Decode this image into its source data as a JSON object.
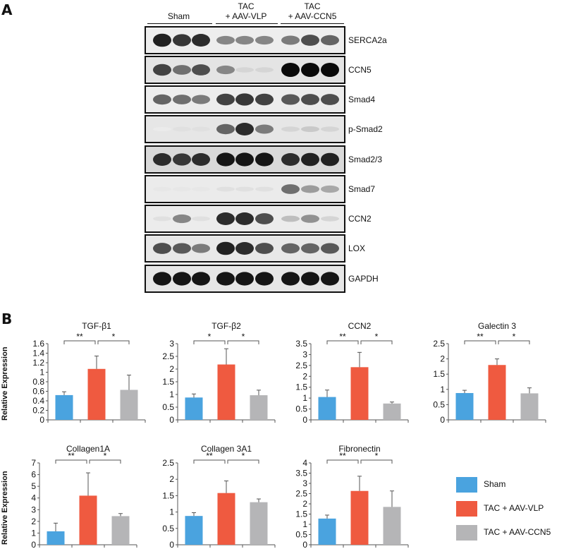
{
  "panel_a_label": "A",
  "panel_b_label": "B",
  "blot_groups": [
    {
      "label_line1": "",
      "label_line2": "Sham"
    },
    {
      "label_line1": "TAC",
      "label_line2": "+ AAV-VLP"
    },
    {
      "label_line1": "TAC",
      "label_line2": "+ AAV-CCN5"
    }
  ],
  "blots": [
    {
      "label": "SERCA2a",
      "intensities": [
        0.9,
        0.8,
        0.85,
        0.45,
        0.45,
        0.45,
        0.5,
        0.7,
        0.6
      ],
      "background": "#eeeeee"
    },
    {
      "label": "CCN5",
      "intensities": [
        0.75,
        0.55,
        0.7,
        0.45,
        0.1,
        0.1,
        1.0,
        1.0,
        1.0
      ],
      "background": "#e4e4e4"
    },
    {
      "label": "Smad4",
      "intensities": [
        0.6,
        0.55,
        0.5,
        0.75,
        0.8,
        0.75,
        0.65,
        0.7,
        0.7
      ],
      "background": "#ededed"
    },
    {
      "label": "p-Smad2",
      "intensities": [
        0.0,
        0.05,
        0.05,
        0.6,
        0.85,
        0.5,
        0.1,
        0.15,
        0.1
      ],
      "background": "#e6e6e6"
    },
    {
      "label": "Smad2/3",
      "intensities": [
        0.85,
        0.8,
        0.85,
        0.95,
        0.95,
        0.95,
        0.85,
        0.9,
        0.9
      ],
      "background": "#d9d9d9"
    },
    {
      "label": "Smad7",
      "intensities": [
        0.02,
        0.02,
        0.02,
        0.05,
        0.05,
        0.05,
        0.55,
        0.35,
        0.3
      ],
      "background": "#ebebeb"
    },
    {
      "label": "CCN2",
      "intensities": [
        0.05,
        0.45,
        0.05,
        0.85,
        0.85,
        0.7,
        0.2,
        0.4,
        0.1
      ],
      "background": "#ececec"
    },
    {
      "label": "LOX",
      "intensities": [
        0.7,
        0.65,
        0.5,
        0.9,
        0.85,
        0.7,
        0.6,
        0.6,
        0.65
      ],
      "background": "#e8e8e8"
    },
    {
      "label": "GAPDH",
      "intensities": [
        0.95,
        0.95,
        0.95,
        0.95,
        0.95,
        0.95,
        0.95,
        0.95,
        0.95
      ],
      "background": "#e6e6e6"
    }
  ],
  "y_axis_label": "Relative Expression",
  "colors": {
    "sham": "#4aa3df",
    "vlp": "#ef5a40",
    "ccn5": "#b5b5b7"
  },
  "chart_data": [
    {
      "type": "bar",
      "title": "TGF-β1",
      "categories": [
        "Sham",
        "TAC + AAV-VLP",
        "TAC + AAV-CCN5"
      ],
      "values": [
        0.52,
        1.07,
        0.63
      ],
      "errors": [
        0.07,
        0.27,
        0.31
      ],
      "ylim": [
        0,
        1.6
      ],
      "yticks": [
        "0",
        "0.2",
        "0.4",
        "0.6",
        "0.8",
        "1",
        "1.2",
        "1.4",
        "1.6"
      ],
      "significance": [
        {
          "from": 0,
          "to": 1,
          "label": "**"
        },
        {
          "from": 1,
          "to": 2,
          "label": "*"
        }
      ]
    },
    {
      "type": "bar",
      "title": "TGF-β2",
      "categories": [
        "Sham",
        "TAC + AAV-VLP",
        "TAC + AAV-CCN5"
      ],
      "values": [
        0.88,
        2.18,
        0.97
      ],
      "errors": [
        0.14,
        0.62,
        0.2
      ],
      "ylim": [
        0,
        3
      ],
      "yticks": [
        "0",
        "0.5",
        "1",
        "1.5",
        "2",
        "2.5",
        "3"
      ],
      "significance": [
        {
          "from": 0,
          "to": 1,
          "label": "*"
        },
        {
          "from": 1,
          "to": 2,
          "label": "*"
        }
      ]
    },
    {
      "type": "bar",
      "title": "CCN2",
      "categories": [
        "Sham",
        "TAC + AAV-VLP",
        "TAC + AAV-CCN5"
      ],
      "values": [
        1.05,
        2.42,
        0.75
      ],
      "errors": [
        0.32,
        0.68,
        0.07
      ],
      "ylim": [
        0,
        3.5
      ],
      "yticks": [
        "0",
        "0.5",
        "1",
        "1.5",
        "2",
        "2.5",
        "3",
        "3.5"
      ],
      "significance": [
        {
          "from": 0,
          "to": 1,
          "label": "**"
        },
        {
          "from": 1,
          "to": 2,
          "label": "*"
        }
      ]
    },
    {
      "type": "bar",
      "title": "Galectin 3",
      "categories": [
        "Sham",
        "TAC + AAV-VLP",
        "TAC + AAV-CCN5"
      ],
      "values": [
        0.88,
        1.8,
        0.87
      ],
      "errors": [
        0.09,
        0.2,
        0.18
      ],
      "ylim": [
        0,
        2.5
      ],
      "yticks": [
        "0",
        "0.5",
        "1",
        "1.5",
        "2",
        "2.5"
      ],
      "significance": [
        {
          "from": 0,
          "to": 1,
          "label": "**"
        },
        {
          "from": 1,
          "to": 2,
          "label": "*"
        }
      ]
    },
    {
      "type": "bar",
      "title": "Collagen1A",
      "categories": [
        "Sham",
        "TAC + AAV-VLP",
        "TAC + AAV-CCN5"
      ],
      "values": [
        1.15,
        4.2,
        2.45
      ],
      "errors": [
        0.7,
        1.95,
        0.22
      ],
      "ylim": [
        0,
        7
      ],
      "yticks": [
        "0",
        "1",
        "2",
        "3",
        "4",
        "5",
        "6",
        "7"
      ],
      "significance": [
        {
          "from": 0,
          "to": 1,
          "label": "**"
        },
        {
          "from": 1,
          "to": 2,
          "label": "*"
        }
      ]
    },
    {
      "type": "bar",
      "title": "Collagen 3A1",
      "categories": [
        "Sham",
        "TAC + AAV-VLP",
        "TAC + AAV-CCN5"
      ],
      "values": [
        0.88,
        1.58,
        1.3
      ],
      "errors": [
        0.1,
        0.37,
        0.1
      ],
      "ylim": [
        0,
        2.5
      ],
      "yticks": [
        "0",
        "0.5",
        "1",
        "1.5",
        "2",
        "2.5"
      ],
      "significance": [
        {
          "from": 0,
          "to": 1,
          "label": "**"
        },
        {
          "from": 1,
          "to": 2,
          "label": "*"
        }
      ]
    },
    {
      "type": "bar",
      "title": "Fibronectin",
      "categories": [
        "Sham",
        "TAC + AAV-VLP",
        "TAC + AAV-CCN5"
      ],
      "values": [
        1.28,
        2.63,
        1.85
      ],
      "errors": [
        0.17,
        0.72,
        0.78
      ],
      "ylim": [
        0,
        4
      ],
      "yticks": [
        "0",
        "0.5",
        "1",
        "1.5",
        "2",
        "2.5",
        "3",
        "3.5",
        "4"
      ],
      "significance": [
        {
          "from": 0,
          "to": 1,
          "label": "**"
        },
        {
          "from": 1,
          "to": 2,
          "label": "*"
        }
      ]
    }
  ],
  "legend": [
    {
      "label": "Sham",
      "color": "#4aa3df"
    },
    {
      "label": "TAC + AAV-VLP",
      "color": "#ef5a40"
    },
    {
      "label": "TAC + AAV-CCN5",
      "color": "#b5b5b7"
    }
  ]
}
